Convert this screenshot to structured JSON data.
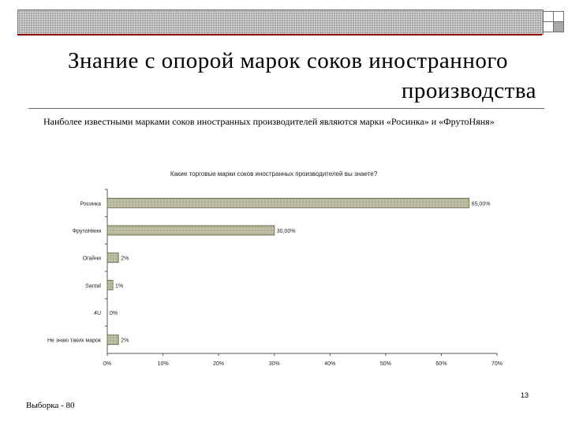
{
  "slide": {
    "title_line1": "Знание с опорой марок соков иностранного",
    "title_line2": "производства",
    "subtitle": "Наиболее известными марками соков иностранных производителей являются марки «Росинка» и «ФрутоНяня»",
    "footer": "Выборка - 80",
    "page_number": "13"
  },
  "colors": {
    "bar_fill": "#b5b598",
    "bar_stroke": "#6f6f52",
    "axis": "#555555",
    "accent_line": "#8b0000"
  },
  "chart_data": {
    "type": "bar",
    "orientation": "horizontal",
    "title": "Какие торговые марки соков иностранных производителей вы знаете?",
    "categories": [
      "Росинка",
      "ФрутоНяня",
      "Огайни",
      "Santal",
      "4U",
      "Не знаю таких марок"
    ],
    "values": [
      65.0,
      30.0,
      2,
      1,
      0,
      2
    ],
    "value_labels": [
      "65,00%",
      "30,00%",
      "2%",
      "1%",
      "0%",
      "2%"
    ],
    "xlim": [
      0,
      70
    ],
    "xticks": [
      "0%",
      "10%",
      "20%",
      "30%",
      "40%",
      "50%",
      "60%",
      "70%"
    ],
    "xlabel": "",
    "ylabel": "",
    "grid": false,
    "legend": false
  }
}
